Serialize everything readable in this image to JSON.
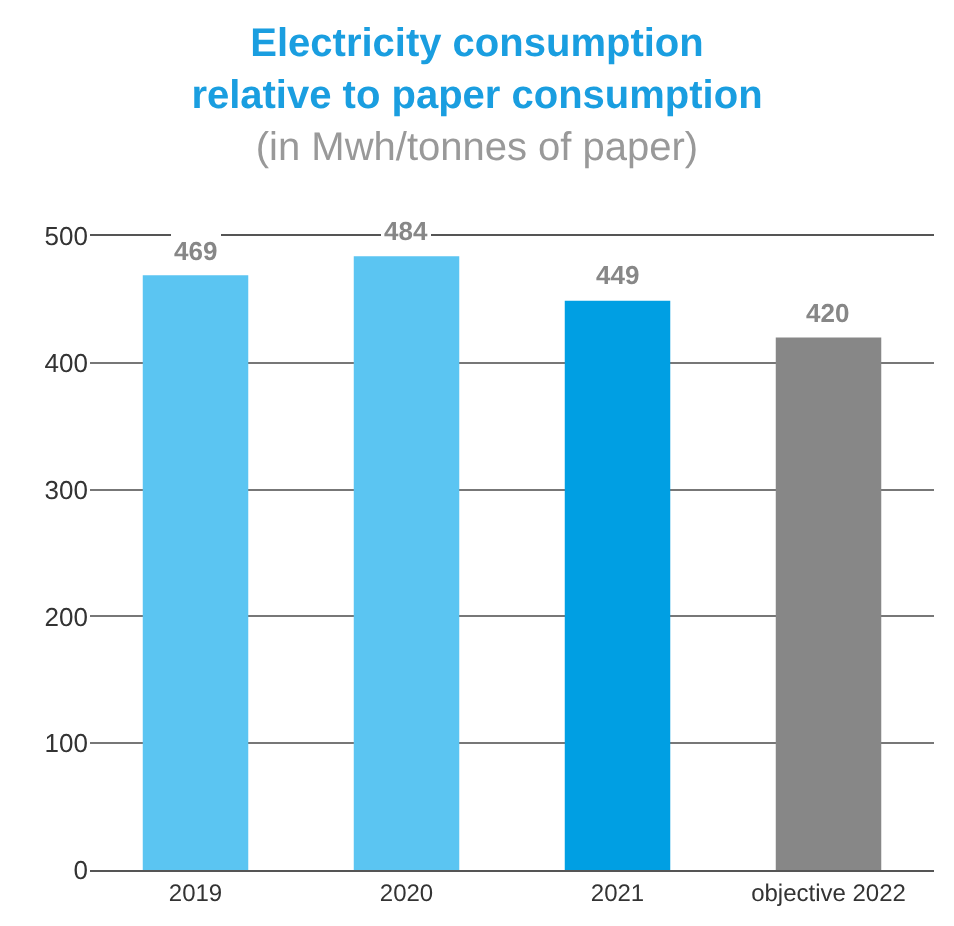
{
  "chart_data": {
    "type": "bar",
    "title": "Electricity consumption\nrelative to paper consumption",
    "subtitle": "(in Mwh/tonnes of paper)",
    "categories": [
      "2019",
      "2020",
      "2021",
      "objective 2022"
    ],
    "values": [
      469,
      484,
      449,
      420
    ],
    "colors": [
      "#5bc5f2",
      "#5bc5f2",
      "#009fe3",
      "#878787"
    ],
    "ylim": [
      0,
      500
    ],
    "yticks": [
      0,
      100,
      200,
      300,
      400,
      500
    ],
    "grid": "y",
    "data_labels": true,
    "legend": false
  }
}
